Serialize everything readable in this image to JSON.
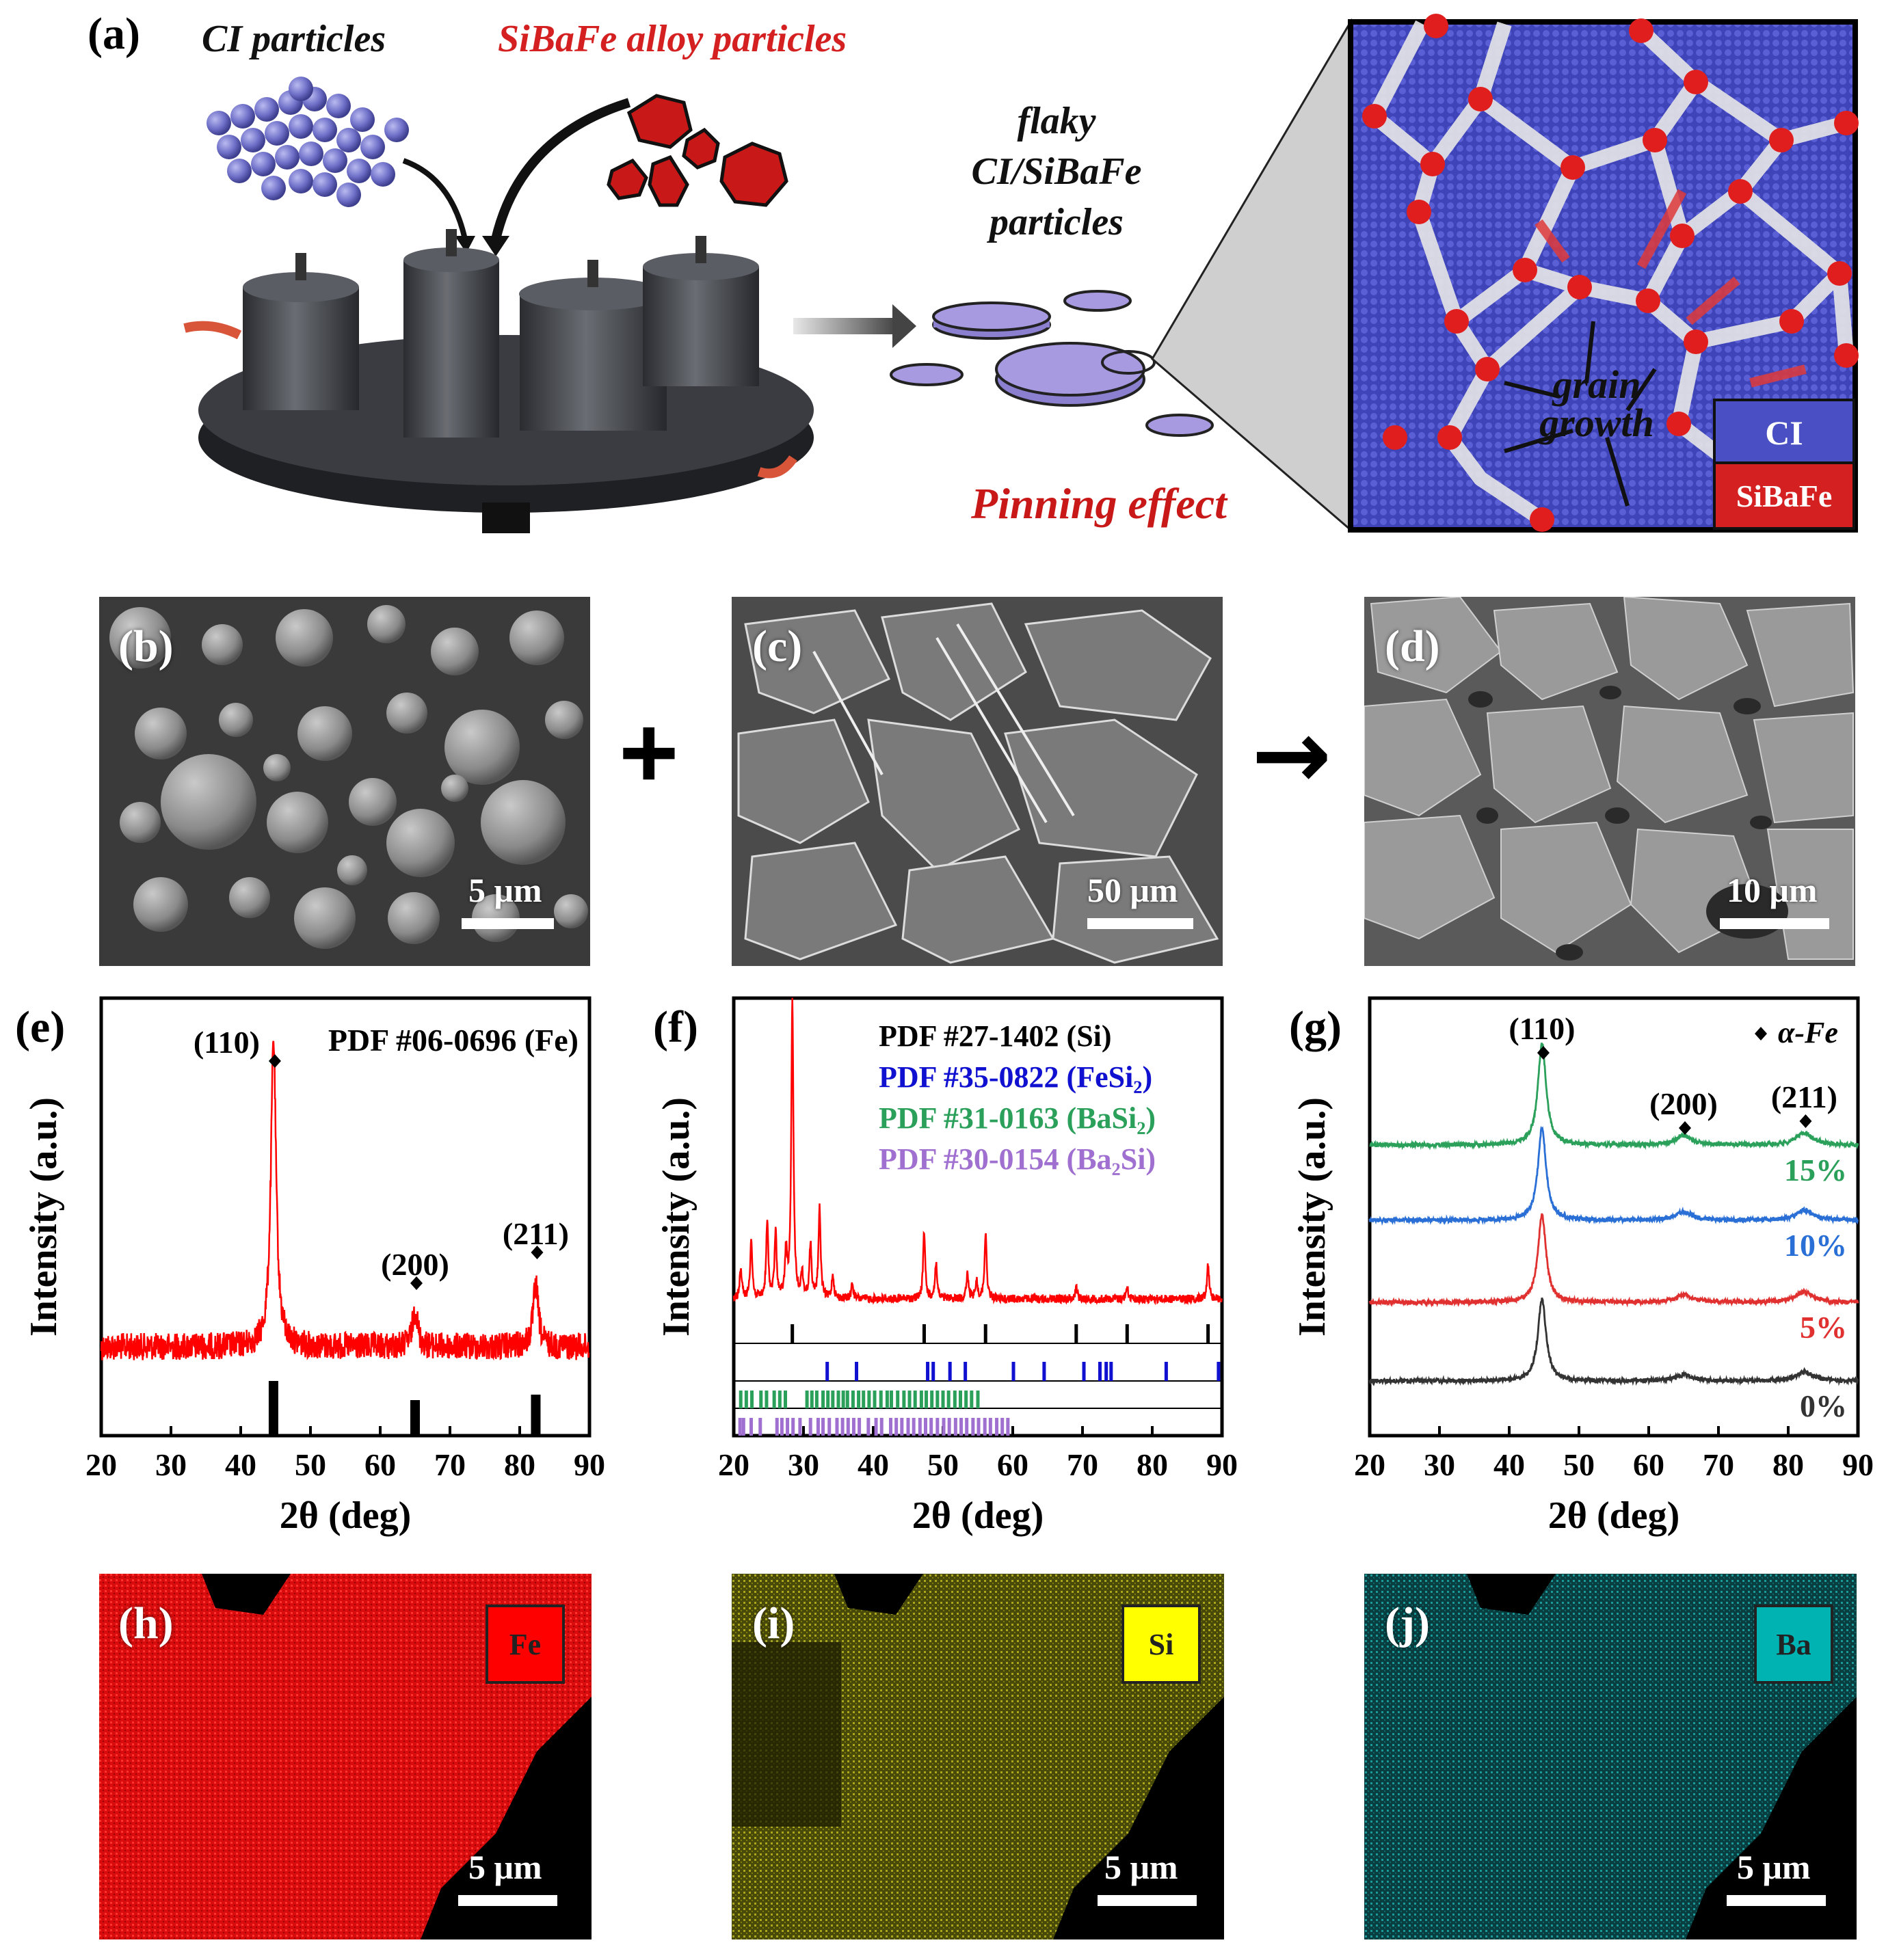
{
  "panel_labels": {
    "a": "(a)",
    "b": "(b)",
    "c": "(c)",
    "d": "(d)",
    "e": "(e)",
    "f": "(f)",
    "g": "(g)",
    "h": "(h)",
    "i": "(i)",
    "j": "(j)"
  },
  "schematic": {
    "ci_particles": "CI particles",
    "sibafe_particles": "SiBaFe alloy particles",
    "flaky_line1": "flaky",
    "flaky_line2": "CI/SiBaFe",
    "flaky_line3": "particles",
    "pinning_effect": "Pinning effect",
    "grain_line1": "grain",
    "grain_line2": "growth",
    "legend_ci": "CI",
    "legend_sibafe": "SiBaFe",
    "colors": {
      "ci": "#4b4fc4",
      "sibafe": "#d42020",
      "mill": "#3c3f44"
    }
  },
  "sem": {
    "b_scale": "5 μm",
    "c_scale": "50 μm",
    "d_scale": "10 μm",
    "plus": "+",
    "arrow": "→"
  },
  "eds": {
    "h_element": "Fe",
    "i_element": "Si",
    "j_element": "Ba",
    "h_scale": "5 μm",
    "i_scale": "5 μm",
    "j_scale": "5 μm",
    "colors": {
      "Fe": "#ff0000",
      "Si": "#ffff00",
      "Ba": "#00b3b3"
    }
  },
  "chart_data": [
    {
      "panel": "e",
      "type": "line",
      "xlabel": "2θ (deg)",
      "ylabel": "Intensity (a.u.)",
      "xlim": [
        20,
        90
      ],
      "xticks": [
        20,
        30,
        40,
        50,
        60,
        70,
        80,
        90
      ],
      "legend": "PDF #06-0696 (Fe)",
      "series_color": "#ff0000",
      "peaks": [
        {
          "x": 44.7,
          "label": "(110)",
          "rel": 1.0
        },
        {
          "x": 65.0,
          "label": "(200)",
          "rel": 0.12
        },
        {
          "x": 82.3,
          "label": "(211)",
          "rel": 0.2
        }
      ],
      "reference_sticks": [
        {
          "x": 44.7,
          "rel": 1.0
        },
        {
          "x": 65.0,
          "rel": 0.65
        },
        {
          "x": 82.3,
          "rel": 0.75
        }
      ]
    },
    {
      "panel": "f",
      "type": "line",
      "xlabel": "2θ (deg)",
      "ylabel": "Intensity (a.u.)",
      "xlim": [
        20,
        90
      ],
      "xticks": [
        20,
        30,
        40,
        50,
        60,
        70,
        80,
        90
      ],
      "series_color": "#ff0000",
      "peaks": [
        {
          "x": 21.0,
          "rel": 0.1
        },
        {
          "x": 22.5,
          "rel": 0.2
        },
        {
          "x": 24.8,
          "rel": 0.25
        },
        {
          "x": 26.0,
          "rel": 0.22
        },
        {
          "x": 27.5,
          "rel": 0.15
        },
        {
          "x": 28.4,
          "rel": 1.0
        },
        {
          "x": 29.8,
          "rel": 0.08
        },
        {
          "x": 31.0,
          "rel": 0.18
        },
        {
          "x": 32.3,
          "rel": 0.3
        },
        {
          "x": 34.2,
          "rel": 0.08
        },
        {
          "x": 37.0,
          "rel": 0.05
        },
        {
          "x": 47.3,
          "rel": 0.22
        },
        {
          "x": 49.0,
          "rel": 0.12
        },
        {
          "x": 53.5,
          "rel": 0.08
        },
        {
          "x": 54.8,
          "rel": 0.06
        },
        {
          "x": 56.1,
          "rel": 0.22
        },
        {
          "x": 69.1,
          "rel": 0.04
        },
        {
          "x": 76.4,
          "rel": 0.04
        },
        {
          "x": 88.0,
          "rel": 0.12
        }
      ],
      "references": [
        {
          "name": "PDF #27-1402 (Si)",
          "color": "#000000",
          "sticks": [
            28.4,
            47.3,
            56.1,
            69.1,
            76.4,
            88.0
          ]
        },
        {
          "name": "PDF #35-0822 (FeSi₂)",
          "color": "#1010d0",
          "sticks": [
            33.4,
            37.6,
            47.8,
            48.6,
            51.0,
            53.2,
            60.1,
            64.5,
            70.2,
            72.5,
            73.4,
            74.1,
            82.0,
            89.5
          ]
        },
        {
          "name": "PDF #31-0163 (BaSi₂)",
          "color": "#2aa05a",
          "sticks": [
            21.0,
            21.8,
            22.6,
            23.9,
            24.7,
            25.8,
            26.6,
            27.4,
            30.5,
            31.2,
            31.9,
            32.8,
            33.5,
            34.2,
            35.0,
            35.7,
            36.3,
            37.1,
            37.9,
            38.6,
            39.4,
            40.2,
            41.1,
            42.0,
            42.6,
            43.5,
            44.4,
            45.2,
            46.0,
            46.9,
            47.6,
            48.4,
            49.2,
            50.0,
            50.8,
            51.7,
            52.5,
            53.3,
            54.1,
            55.0
          ]
        },
        {
          "name": "PDF #30-0154 (Ba₂Si)",
          "color": "#a070d0",
          "sticks": [
            20.9,
            21.4,
            22.5,
            23.8,
            26.2,
            26.9,
            27.7,
            28.5,
            29.5,
            31.0,
            32.1,
            32.8,
            33.7,
            34.8,
            35.6,
            36.4,
            37.2,
            38.0,
            39.3,
            40.4,
            41.2,
            42.5,
            43.3,
            44.1,
            45.0,
            45.8,
            46.7,
            47.5,
            48.3,
            49.2,
            50.1,
            50.9,
            51.8,
            52.6,
            53.4,
            54.3,
            55.1,
            56.0,
            56.8,
            57.7,
            58.5,
            59.3
          ]
        }
      ]
    },
    {
      "panel": "g",
      "type": "line",
      "xlabel": "2θ (deg)",
      "ylabel": "Intensity (a.u.)",
      "xlim": [
        20,
        90
      ],
      "xticks": [
        20,
        30,
        40,
        50,
        60,
        70,
        80,
        90
      ],
      "marker_legend": "α-Fe",
      "peak_labels": [
        {
          "x": 44.7,
          "label": "(110)"
        },
        {
          "x": 65.0,
          "label": "(200)"
        },
        {
          "x": 82.3,
          "label": "(211)"
        }
      ],
      "series": [
        {
          "name": "15%",
          "color": "#2aa05a",
          "peak_rel": [
            1.0,
            0.09,
            0.12
          ]
        },
        {
          "name": "10%",
          "color": "#2a6fd6",
          "peak_rel": [
            0.9,
            0.08,
            0.1
          ]
        },
        {
          "name": "5%",
          "color": "#e03030",
          "peak_rel": [
            0.85,
            0.07,
            0.1
          ]
        },
        {
          "name": "0%",
          "color": "#333333",
          "peak_rel": [
            0.8,
            0.06,
            0.09
          ]
        }
      ]
    }
  ]
}
